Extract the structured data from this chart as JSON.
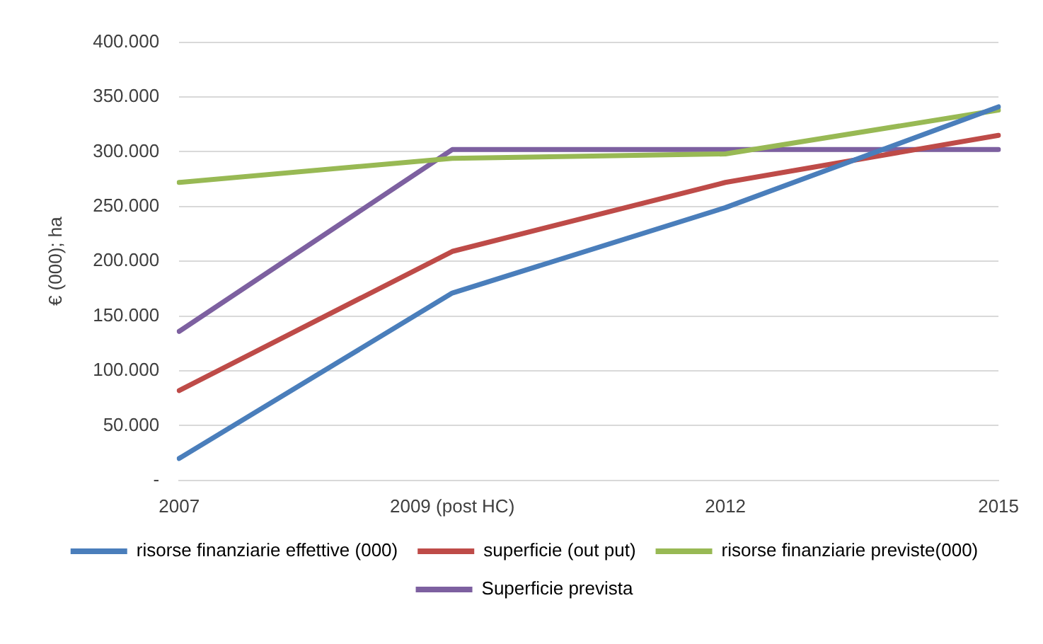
{
  "chart_data": {
    "type": "line",
    "ylabel": "€ (000); ha",
    "categories": [
      "2007",
      "2009 (post HC)",
      "2012",
      "2015"
    ],
    "series": [
      {
        "name": "risorse finanziarie effettive (000)",
        "color": "#4a7ebb",
        "values": [
          20000,
          171000,
          249000,
          341000
        ]
      },
      {
        "name": "superficie (out put)",
        "color": "#be4b48",
        "values": [
          82000,
          209000,
          272000,
          315000
        ]
      },
      {
        "name": "risorse finanziarie previste(000)",
        "color": "#98b954",
        "values": [
          272000,
          294000,
          298000,
          338000
        ]
      },
      {
        "name": "Superficie prevista",
        "color": "#7d60a0",
        "values": [
          136000,
          302000,
          302000,
          302000
        ]
      }
    ],
    "ylim": [
      0,
      400000
    ],
    "yticks": [
      {
        "value": 0,
        "label": "-"
      },
      {
        "value": 50000,
        "label": "50.000"
      },
      {
        "value": 100000,
        "label": "100.000"
      },
      {
        "value": 150000,
        "label": "150.000"
      },
      {
        "value": 200000,
        "label": "200.000"
      },
      {
        "value": 250000,
        "label": "250.000"
      },
      {
        "value": 300000,
        "label": "300.000"
      },
      {
        "value": 350000,
        "label": "350.000"
      },
      {
        "value": 400000,
        "label": "400.000"
      }
    ],
    "grid": "y",
    "legend": "bottom",
    "marker": "none",
    "line_style": "solid"
  }
}
